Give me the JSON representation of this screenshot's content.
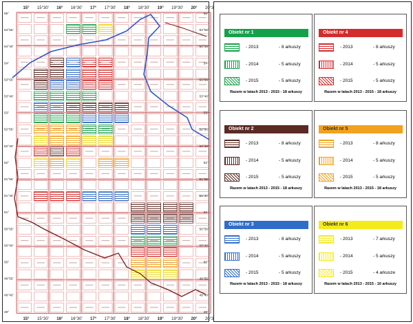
{
  "map": {
    "top_labels": [
      "15°",
      "15°30'",
      "16°",
      "16°30'",
      "17°",
      "17°30'",
      "18°",
      "18°30'",
      "19°",
      "19°30'",
      "20°",
      "20°30'"
    ],
    "bottom_labels": [
      "15°",
      "15°30'",
      "16°",
      "16°30'",
      "17°",
      "17°30'",
      "18°",
      "18°30'",
      "19°",
      "19°30'",
      "20°",
      "20°30'"
    ],
    "left_labels": [
      "55°",
      "54°55'",
      "54°40'",
      "54°",
      "53°55'",
      "53°40'",
      "53°",
      "52°55'",
      "52°40'",
      "52°",
      "51°55'",
      "51°40'",
      "51°",
      "50°55'",
      "50°40'",
      "50°",
      "49°55'",
      "49°40'",
      "49°"
    ],
    "right_labels": [
      "55°",
      "54°55'",
      "54°40'",
      "54°",
      "53°55'",
      "53°40'",
      "53°",
      "52°55'",
      "52°40'",
      "52°",
      "51°55'",
      "51°40'",
      "51°",
      "50°55'",
      "50°40'",
      "50°",
      "49°55'",
      "49°40'",
      "49°"
    ]
  },
  "legend": {
    "boxes": [
      {
        "title": "Obiekt nr 1",
        "color": "#14a14a",
        "pattern": "horizontal",
        "rows": [
          {
            "year": "- 2013",
            "count": "- 8 arkuszy"
          },
          {
            "year": "- 2014",
            "count": "- 5 arkuszy"
          },
          {
            "year": "- 2015",
            "count": "- 5 arkuszy"
          }
        ],
        "total": "Razem w latach 2013 - 2015 - 18 arkuszy"
      },
      {
        "title": "Obiekt nr 4",
        "color": "#d42b2b",
        "pattern": "horizontal",
        "rows": [
          {
            "year": "- 2013",
            "count": "- 8 arkuszy"
          },
          {
            "year": "- 2014",
            "count": "- 5 arkuszy"
          },
          {
            "year": "- 2015",
            "count": "- 5 arkuszy"
          }
        ],
        "total": "Razem w latach 2013 - 2015 - 18 arkuszy"
      },
      {
        "title": "Obiekt nr 2",
        "color": "#5a2a24",
        "pattern": "horizontal",
        "rows": [
          {
            "year": "- 2013",
            "count": "- 8 arkuszy"
          },
          {
            "year": "- 2014",
            "count": "- 5 arkuszy"
          },
          {
            "year": "- 2015",
            "count": "- 5 arkuszy"
          }
        ],
        "total": "Razem w latach 2013 - 2015 - 18 arkuszy"
      },
      {
        "title": "Obiekt nr 5",
        "color": "#f2a21e",
        "pattern": "horizontal",
        "rows": [
          {
            "year": "- 2013",
            "count": "- 8 arkuszy"
          },
          {
            "year": "- 2014",
            "count": "- 5 arkuszy"
          },
          {
            "year": "- 2015",
            "count": "- 5 arkuszy"
          }
        ],
        "total": "Razem w latach 2013 - 2015 - 18 arkuszy"
      },
      {
        "title": "Obiekt nr 3",
        "color": "#2f6dc9",
        "pattern": "horizontal",
        "rows": [
          {
            "year": "- 2013",
            "count": "- 8 arkuszy"
          },
          {
            "year": "- 2014",
            "count": "- 5 arkuszy"
          },
          {
            "year": "- 2015",
            "count": "- 5 arkuszy"
          }
        ],
        "total": "Razem w latach 2013 - 2015 - 18 arkuszy"
      },
      {
        "title": "Obiekt nr 6",
        "color": "#f5ea1a",
        "pattern": "horizontal",
        "rows": [
          {
            "year": "- 2013",
            "count": "- 7 arkuszy"
          },
          {
            "year": "- 2014",
            "count": "- 5 arkuszy"
          },
          {
            "year": "- 2015",
            "count": "- 4 arkusze"
          }
        ],
        "total": "Razem w latach 2013 - 2015 - 16 arkuszy"
      }
    ]
  }
}
